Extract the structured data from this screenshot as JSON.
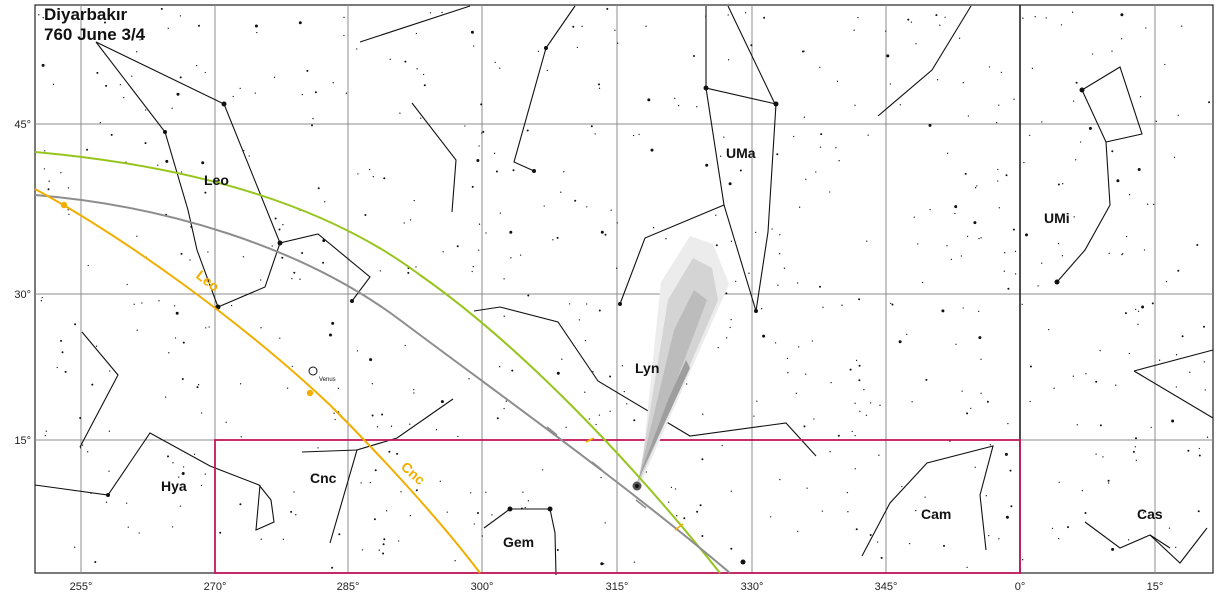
{
  "title": {
    "location": "Diyarbakır",
    "date": "760 June 3/4"
  },
  "axes": {
    "ra_labels": [
      "255°",
      "270°",
      "285°",
      "300°",
      "315°",
      "330°",
      "345°",
      "0°",
      "15°"
    ],
    "dec_labels": [
      "45°",
      "30°",
      "15°"
    ]
  },
  "constellations": [
    "Leo",
    "UMa",
    "UMi",
    "Lyn",
    "Hya",
    "Cnc",
    "Gem",
    "Cam",
    "Cas"
  ],
  "sun_path_labels": [
    "Leo",
    "Cnc"
  ],
  "planet": {
    "name": "Venus"
  },
  "colors": {
    "ecliptic": "#f2ae00",
    "equator_green": "#96c51e",
    "path_gray": "#8d8d8d",
    "highlight_box": "#c2185b",
    "grid": "#8c8c8c"
  }
}
